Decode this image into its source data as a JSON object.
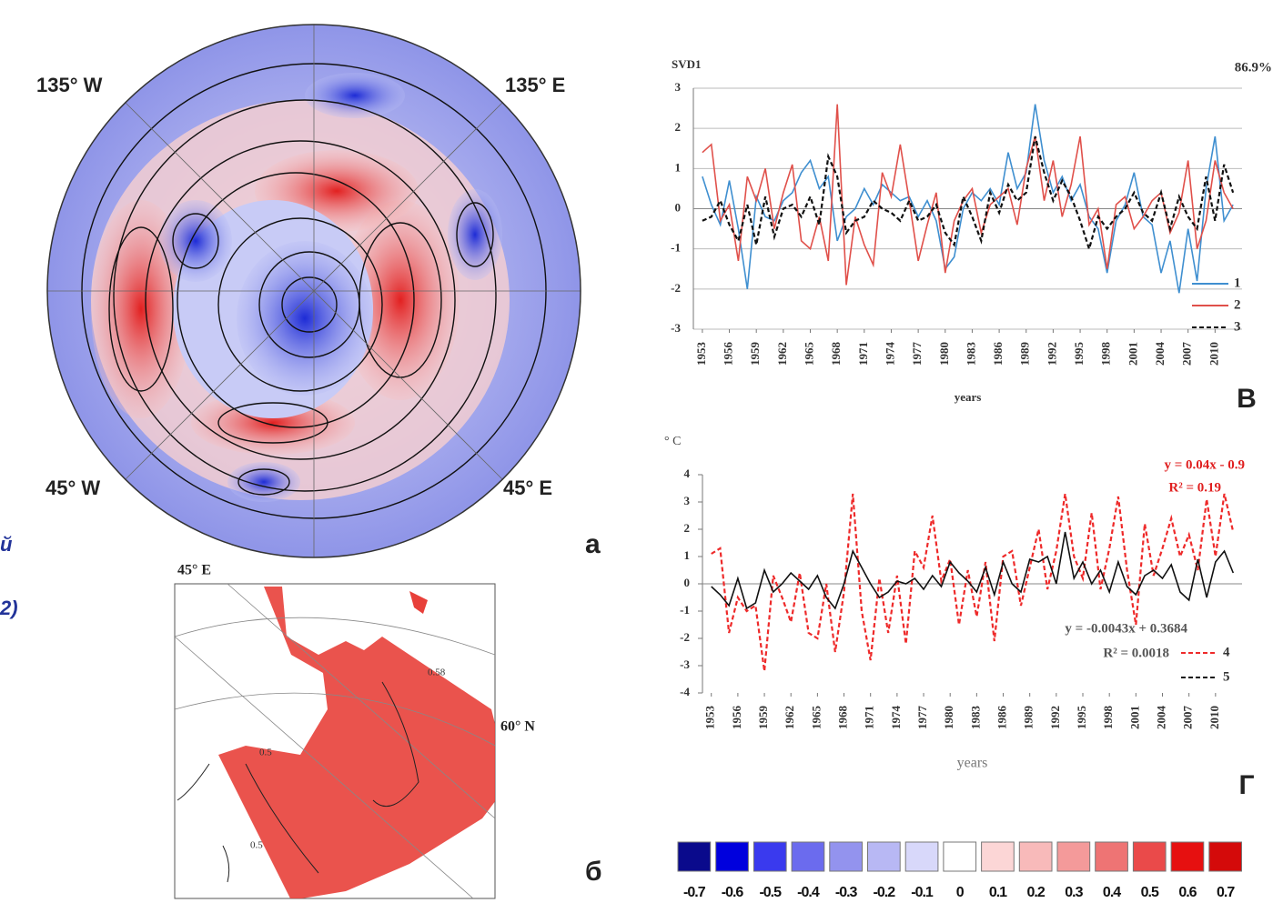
{
  "chart_data": [
    {
      "type": "line",
      "title": "SVD1",
      "annotation": "86.9%",
      "xlabel": "years",
      "panel": "В",
      "x": [
        1953,
        1954,
        1955,
        1956,
        1957,
        1958,
        1959,
        1960,
        1961,
        1962,
        1963,
        1964,
        1965,
        1966,
        1967,
        1968,
        1969,
        1970,
        1971,
        1972,
        1973,
        1974,
        1975,
        1976,
        1977,
        1978,
        1979,
        1980,
        1981,
        1982,
        1983,
        1984,
        1985,
        1986,
        1987,
        1988,
        1989,
        1990,
        1991,
        1992,
        1993,
        1994,
        1995,
        1996,
        1997,
        1998,
        1999,
        2000,
        2001,
        2002,
        2003,
        2004,
        2005,
        2006,
        2007,
        2008,
        2009,
        2010,
        2011,
        2012
      ],
      "xlim": [
        1952,
        2013
      ],
      "xticks": [
        1953,
        1956,
        1959,
        1962,
        1965,
        1968,
        1971,
        1974,
        1977,
        1980,
        1983,
        1986,
        1989,
        1992,
        1995,
        1998,
        2001,
        2004,
        2007,
        2010
      ],
      "ylim": [
        -3,
        3
      ],
      "yticks": [
        -3,
        -2,
        -1,
        0,
        1,
        2,
        3
      ],
      "grid": true,
      "series": [
        {
          "name": "1",
          "color": "#3f8fd0",
          "dashed": false,
          "values": [
            0.8,
            0.1,
            -0.4,
            0.7,
            -0.5,
            -2.0,
            0.3,
            -0.2,
            -0.3,
            0.2,
            0.4,
            0.9,
            1.2,
            0.5,
            0.8,
            -0.8,
            -0.2,
            0.0,
            0.5,
            0.1,
            0.6,
            0.4,
            0.2,
            0.3,
            -0.2,
            0.2,
            -0.3,
            -1.5,
            -1.2,
            0.0,
            0.4,
            0.2,
            0.5,
            0.1,
            1.4,
            0.5,
            0.9,
            2.6,
            1.2,
            0.4,
            0.8,
            0.2,
            0.6,
            -0.2,
            -0.5,
            -1.6,
            -0.3,
            0.1,
            0.9,
            -0.2,
            -0.4,
            -1.6,
            -0.8,
            -2.1,
            -0.5,
            -1.8,
            0.5,
            1.8,
            -0.3,
            0.1
          ]
        },
        {
          "name": "2",
          "color": "#e0504a",
          "dashed": false,
          "values": [
            1.4,
            1.6,
            -0.3,
            0.1,
            -1.3,
            0.8,
            0.2,
            1.0,
            -0.5,
            0.4,
            1.1,
            -0.8,
            -1.0,
            -0.2,
            -1.3,
            2.6,
            -1.9,
            -0.2,
            -0.9,
            -1.4,
            0.9,
            0.3,
            1.6,
            0.2,
            -1.3,
            -0.4,
            0.4,
            -1.6,
            -0.3,
            0.2,
            0.5,
            -0.6,
            0.1,
            0.3,
            0.5,
            -0.4,
            1.0,
            1.8,
            0.2,
            1.2,
            -0.2,
            0.6,
            1.8,
            -0.4,
            0.0,
            -1.5,
            0.1,
            0.3,
            -0.5,
            -0.2,
            0.2,
            0.4,
            -0.6,
            -0.1,
            1.2,
            -1.0,
            -0.3,
            1.2,
            0.4,
            0.0
          ]
        },
        {
          "name": "3",
          "color": "#111111",
          "dashed": true,
          "values": [
            -0.3,
            -0.2,
            0.2,
            -0.4,
            -0.8,
            0.1,
            -0.9,
            0.3,
            -0.7,
            0.0,
            0.1,
            -0.2,
            0.3,
            -0.4,
            1.3,
            0.8,
            -0.6,
            -0.3,
            -0.2,
            0.2,
            0.0,
            -0.1,
            -0.3,
            0.2,
            -0.3,
            -0.2,
            0.1,
            -0.6,
            -0.9,
            0.3,
            -0.2,
            -0.8,
            0.4,
            -0.1,
            0.6,
            0.2,
            0.4,
            1.8,
            0.9,
            0.2,
            0.7,
            0.3,
            -0.3,
            -1.0,
            -0.2,
            -0.5,
            -0.2,
            0.0,
            0.4,
            -0.1,
            -0.3,
            0.4,
            -0.5,
            0.3,
            -0.2,
            -0.5,
            0.8,
            -0.3,
            1.1,
            0.4
          ]
        }
      ]
    },
    {
      "type": "line",
      "ylabel": "° C",
      "xlabel": "years",
      "panel": "Г",
      "annotations": [
        "y = 0.04x - 0.9",
        "R² = 0.19",
        "y = -0.0043x + 0.3684",
        "R² = 0.0018"
      ],
      "x": [
        1953,
        1954,
        1955,
        1956,
        1957,
        1958,
        1959,
        1960,
        1961,
        1962,
        1963,
        1964,
        1965,
        1966,
        1967,
        1968,
        1969,
        1970,
        1971,
        1972,
        1973,
        1974,
        1975,
        1976,
        1977,
        1978,
        1979,
        1980,
        1981,
        1982,
        1983,
        1984,
        1985,
        1986,
        1987,
        1988,
        1989,
        1990,
        1991,
        1992,
        1993,
        1994,
        1995,
        1996,
        1997,
        1998,
        1999,
        2000,
        2001,
        2002,
        2003,
        2004,
        2005,
        2006,
        2007,
        2008,
        2009,
        2010,
        2011,
        2012
      ],
      "xlim": [
        1952,
        2013
      ],
      "xticks": [
        1953,
        1956,
        1959,
        1962,
        1965,
        1968,
        1971,
        1974,
        1977,
        1980,
        1983,
        1986,
        1989,
        1992,
        1995,
        1998,
        2001,
        2004,
        2007,
        2010
      ],
      "ylim": [
        -4,
        4
      ],
      "yticks": [
        -4,
        -3,
        -2,
        -1,
        0,
        1,
        2,
        3,
        4
      ],
      "grid": false,
      "series": [
        {
          "name": "4",
          "color": "#ee2a2a",
          "dashed": true,
          "values": [
            1.1,
            1.3,
            -1.8,
            -0.5,
            -1.0,
            -0.8,
            -3.2,
            0.3,
            -0.5,
            -1.4,
            0.4,
            -1.8,
            -2.0,
            0.0,
            -2.5,
            -0.3,
            3.3,
            -1.0,
            -2.8,
            0.2,
            -1.8,
            0.3,
            -2.2,
            1.2,
            0.6,
            2.5,
            0.1,
            0.9,
            -1.5,
            0.5,
            -1.2,
            0.8,
            -2.1,
            1.0,
            1.2,
            -0.8,
            0.6,
            2.0,
            -0.2,
            1.2,
            3.3,
            1.0,
            0.2,
            2.6,
            -0.2,
            1.3,
            3.2,
            0.5,
            -1.5,
            2.2,
            0.3,
            1.3,
            2.4,
            1.0,
            1.8,
            0.5,
            3.1,
            1.0,
            3.3,
            1.9
          ]
        },
        {
          "name": "5",
          "color": "#111111",
          "dashed": false,
          "values": [
            -0.1,
            -0.4,
            -0.8,
            0.2,
            -0.9,
            -0.7,
            0.5,
            -0.3,
            0.0,
            0.4,
            0.1,
            -0.2,
            0.3,
            -0.5,
            -0.9,
            0.0,
            1.2,
            0.6,
            0.0,
            -0.5,
            -0.3,
            0.1,
            0.0,
            0.2,
            -0.2,
            0.3,
            -0.1,
            0.8,
            0.4,
            0.1,
            -0.3,
            0.6,
            -0.4,
            0.8,
            0.0,
            -0.3,
            0.9,
            0.8,
            1.0,
            0.0,
            1.9,
            0.2,
            0.8,
            0.0,
            0.5,
            -0.3,
            0.8,
            -0.1,
            -0.4,
            0.3,
            0.5,
            0.2,
            0.7,
            -0.3,
            -0.6,
            0.9,
            -0.5,
            0.8,
            1.2,
            0.4
          ]
        }
      ]
    },
    {
      "type": "colorbar",
      "values": [
        -0.7,
        -0.6,
        -0.5,
        -0.4,
        -0.3,
        -0.2,
        -0.1,
        0,
        0.1,
        0.2,
        0.3,
        0.4,
        0.5,
        0.6,
        0.7
      ],
      "colors": [
        "#0a0a8c",
        "#0000dd",
        "#3a3aee",
        "#6b6bee",
        "#9393ee",
        "#b8b8f4",
        "#d8d8fa",
        "#ffffff",
        "#fcd6d6",
        "#f8baba",
        "#f49a9a",
        "#ee7474",
        "#ea4a4a",
        "#e61010",
        "#d40a0a"
      ]
    }
  ],
  "maps": {
    "polar": {
      "labels": [
        "135° W",
        "135° E",
        "45° W",
        "45° E"
      ],
      "panel": "а"
    },
    "regional": {
      "labels": [
        "45° E",
        "60° N"
      ],
      "contours": [
        "0.58",
        "0.5",
        "0.5"
      ],
      "panel": "б"
    }
  },
  "fragments": [
    "й",
    "2)"
  ]
}
